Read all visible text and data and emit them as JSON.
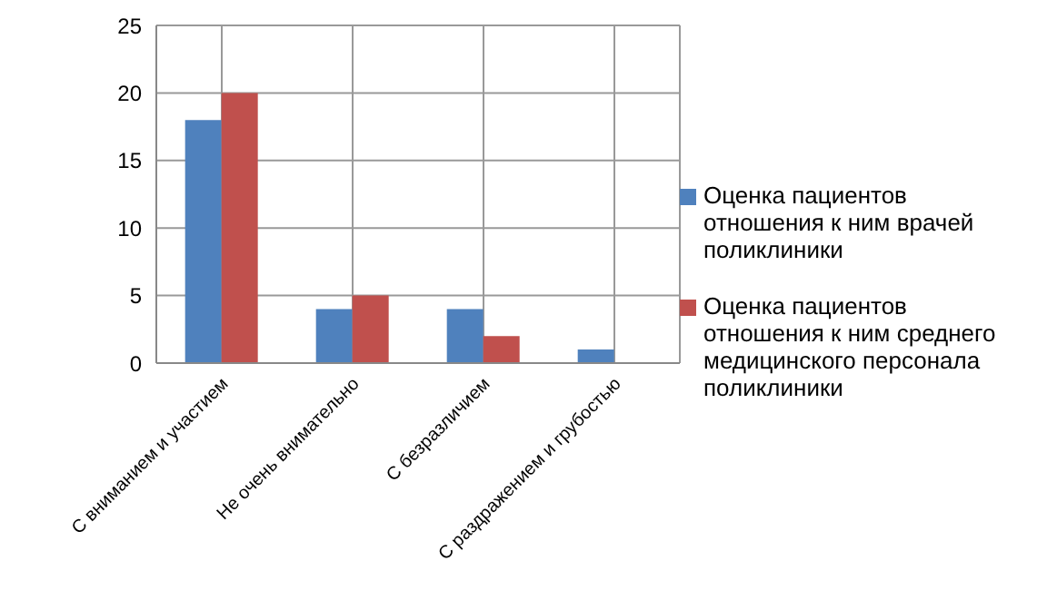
{
  "chart_data": {
    "type": "bar",
    "categories": [
      "С вниманием и участием",
      "Не очень внимательно",
      "С безразличием",
      "С раздражением и грубостью"
    ],
    "series": [
      {
        "name": "Оценка пациентов отношения к ним врачей поликлиники",
        "color": "#4f81bd",
        "values": [
          18,
          4,
          4,
          1
        ]
      },
      {
        "name": "Оценка пациентов отношения к ним среднего медицинского персонала поликлиники",
        "color": "#c0504d",
        "values": [
          20,
          5,
          2,
          0
        ]
      }
    ],
    "ylim": [
      0,
      25
    ],
    "yticks": [
      0,
      5,
      10,
      15,
      20,
      25
    ],
    "grid": true,
    "legend": "right"
  }
}
